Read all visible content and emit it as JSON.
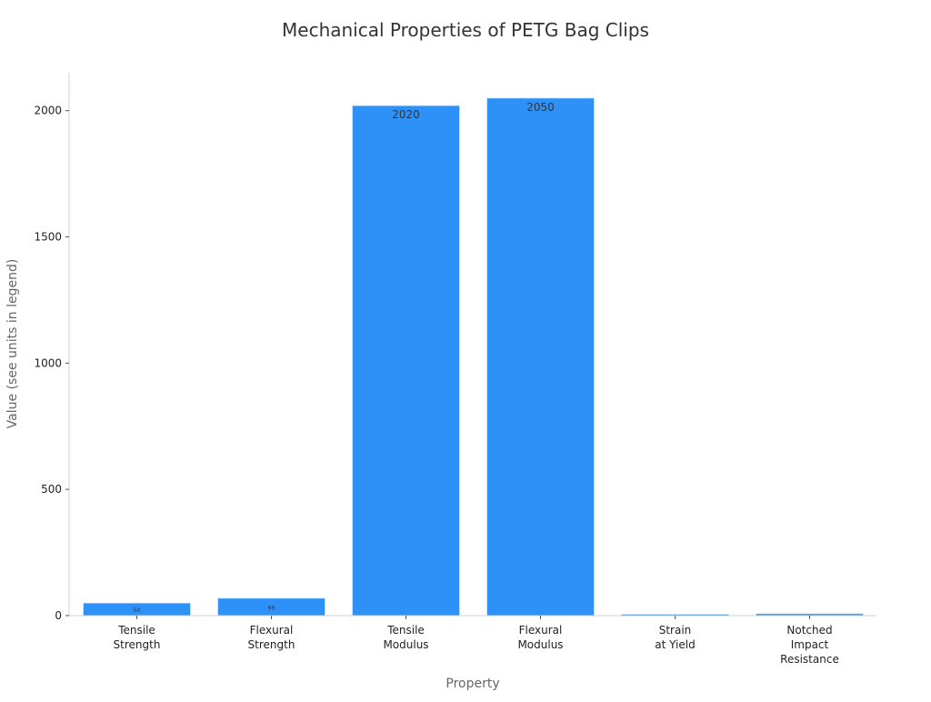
{
  "chart_data": {
    "type": "bar",
    "title": "Mechanical Properties of PETG Bag Clips",
    "xlabel": "Property",
    "ylabel": "Value (see units in legend)",
    "categories": [
      [
        "Tensile",
        "Strength"
      ],
      [
        "Flexural",
        "Strength"
      ],
      [
        "Tensile",
        "Modulus"
      ],
      [
        "Flexural",
        "Modulus"
      ],
      [
        "Strain",
        "at Yield"
      ],
      [
        "Notched",
        "Impact",
        "Resistance"
      ]
    ],
    "values": [
      50,
      69,
      2020,
      2050,
      4.9,
      8
    ],
    "data_labels": [
      "50",
      "69",
      "2020",
      "2050",
      "",
      ""
    ],
    "ylim": [
      0,
      2150
    ],
    "yticks": [
      0,
      500,
      1000,
      1500,
      2000
    ],
    "bar_color": "#2e91f7",
    "grid": false,
    "legend": false
  }
}
